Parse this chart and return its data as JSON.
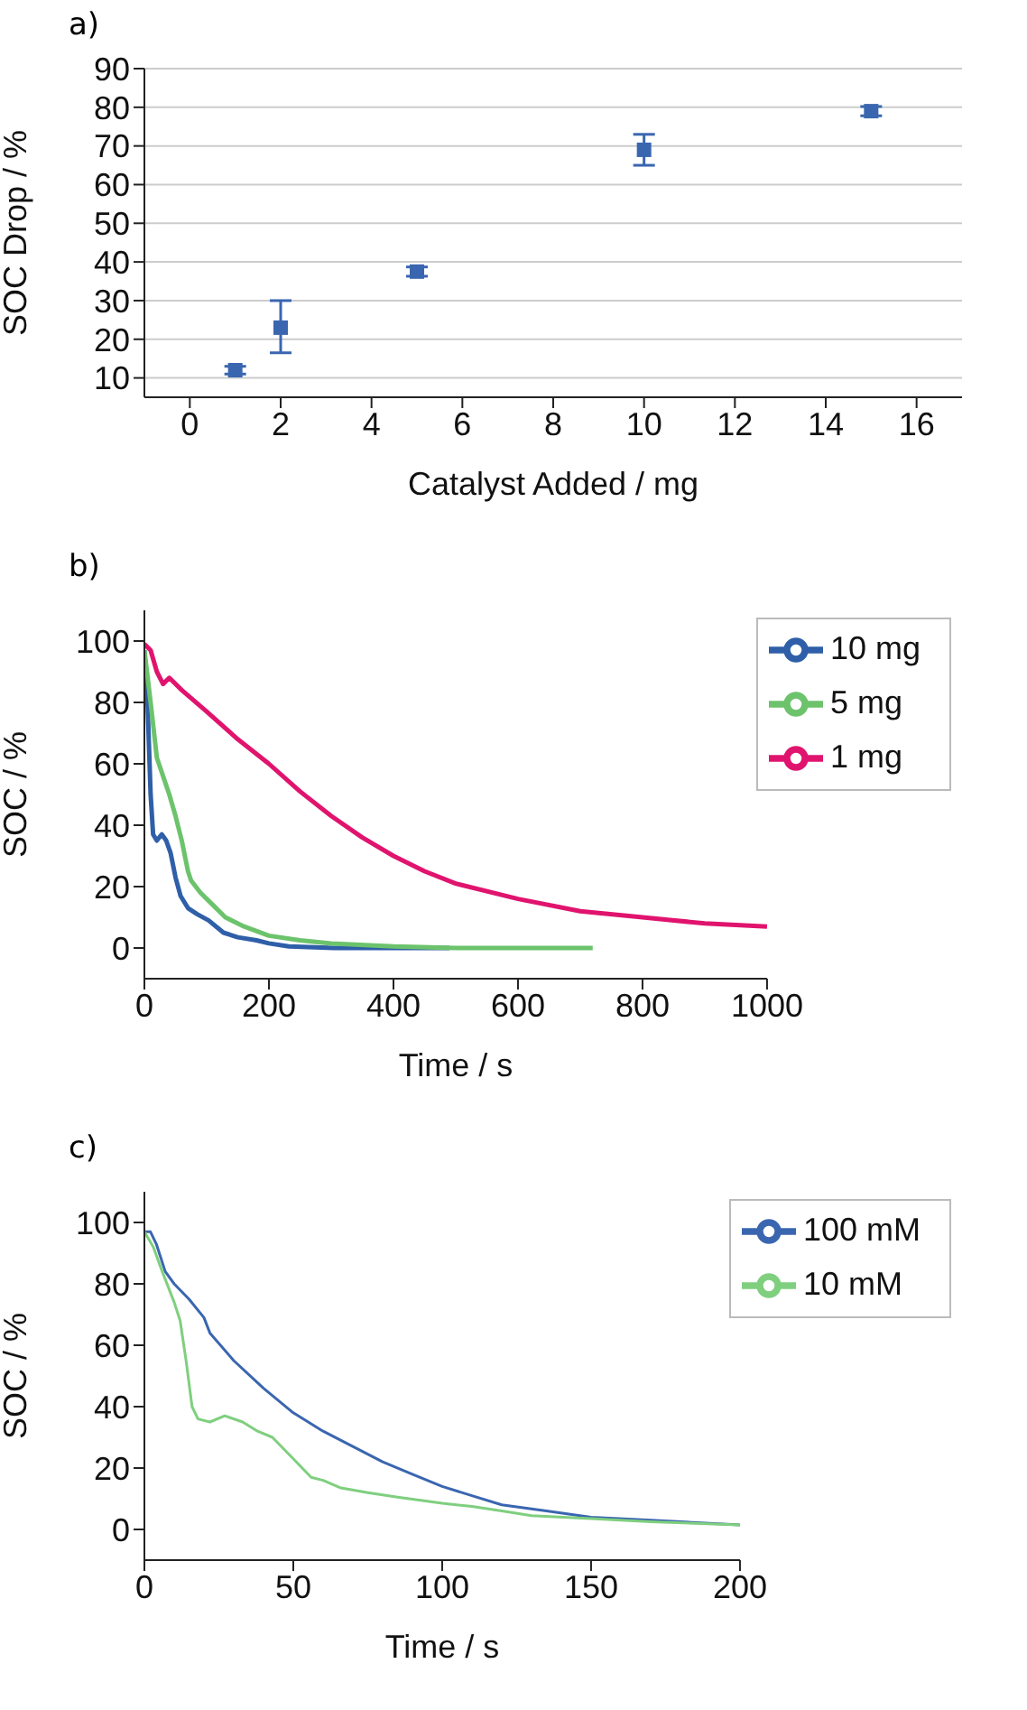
{
  "chart_data": [
    {
      "type": "scatter",
      "annotations": [
        "a)"
      ],
      "xlabel": "Catalyst Added / mg",
      "ylabel": "SOC Drop / %",
      "xlim": [
        -1,
        17
      ],
      "xticks": [
        0,
        2,
        4,
        6,
        8,
        10,
        12,
        14,
        16
      ],
      "ylim": [
        5,
        90
      ],
      "yticks": [
        10,
        20,
        30,
        40,
        50,
        60,
        70,
        80,
        90
      ],
      "grid": "y",
      "marker": "square",
      "legend": false,
      "series": [
        {
          "color": "#3a66b0",
          "x": [
            1,
            2,
            5,
            10,
            15
          ],
          "values": [
            12,
            23,
            37.5,
            69,
            79
          ],
          "errors": [
            1,
            [
              16.5,
              30
            ],
            1.2,
            [
              65,
              73
            ],
            1.2
          ]
        }
      ]
    },
    {
      "type": "line",
      "annotations": [
        "b)"
      ],
      "xlabel": "Time / s",
      "ylabel": "SOC / %",
      "xlim": [
        0,
        1000
      ],
      "xticks": [
        0,
        200,
        400,
        600,
        800,
        1000
      ],
      "ylim": [
        -10,
        110
      ],
      "yticks": [
        0,
        20,
        40,
        60,
        80,
        100
      ],
      "grid": false,
      "legend": "top right",
      "marker": "none",
      "line_style": "solid",
      "series": [
        {
          "name": "10 mg",
          "color": "#2f5fa8",
          "x": [
            0,
            5,
            10,
            14,
            20,
            28,
            35,
            42,
            50,
            58,
            70,
            85,
            103,
            127,
            150,
            180,
            200,
            232,
            305,
            400,
            490
          ],
          "values": [
            97,
            80,
            50,
            37,
            35,
            37,
            35,
            31,
            23,
            17,
            13,
            11,
            9,
            5,
            3.5,
            2.5,
            1.5,
            0.5,
            0,
            0,
            0
          ]
        },
        {
          "name": "5 mg",
          "color": "#6cc36c",
          "x": [
            0,
            10,
            20,
            30,
            40,
            50,
            60,
            70,
            75,
            90,
            110,
            130,
            160,
            200,
            250,
            300,
            400,
            500,
            600,
            720
          ],
          "values": [
            97,
            80,
            62,
            56,
            50,
            43,
            35,
            25,
            22,
            18,
            14,
            10,
            7,
            4,
            2.5,
            1.5,
            0.5,
            0,
            0,
            0
          ]
        },
        {
          "name": "1 mg",
          "color": "#e0146e",
          "x": [
            0,
            10,
            20,
            30,
            40,
            60,
            100,
            150,
            200,
            250,
            300,
            350,
            400,
            450,
            500,
            600,
            700,
            800,
            900,
            1000
          ],
          "values": [
            99,
            97,
            90,
            86,
            88,
            84,
            77,
            68,
            60,
            51,
            43,
            36,
            30,
            25,
            21,
            16,
            12,
            10,
            8,
            7
          ]
        }
      ]
    },
    {
      "type": "line",
      "annotations": [
        "c)"
      ],
      "xlabel": "Time / s",
      "ylabel": "SOC / %",
      "xlim": [
        0,
        200
      ],
      "xticks": [
        0,
        50,
        100,
        150,
        200
      ],
      "ylim": [
        -10,
        110
      ],
      "yticks": [
        0,
        20,
        40,
        60,
        80,
        100
      ],
      "grid": false,
      "legend": "top right",
      "marker": "none",
      "line_style": "solid",
      "series": [
        {
          "name": "100 mM",
          "color": "#3a66b0",
          "x": [
            0,
            2,
            4,
            7,
            10,
            15,
            20,
            22,
            30,
            40,
            50,
            60,
            70,
            80,
            90,
            100,
            110,
            120,
            135,
            150,
            170,
            200
          ],
          "values": [
            97,
            97,
            93,
            84,
            80,
            75,
            69,
            64,
            55,
            46,
            38,
            32,
            27,
            22,
            18,
            14,
            11,
            8,
            6,
            4,
            3,
            1.5
          ]
        },
        {
          "name": "10 mM",
          "color": "#7fcf7f",
          "x": [
            0,
            3,
            6,
            10,
            12,
            14,
            16,
            18,
            22,
            27,
            33,
            38,
            43,
            50,
            56,
            60,
            66,
            75,
            85,
            100,
            110,
            120,
            130,
            150,
            170,
            200
          ],
          "values": [
            97,
            92,
            84,
            74,
            68,
            55,
            40,
            36,
            35,
            37,
            35,
            32,
            30,
            23,
            17,
            16,
            13.5,
            12,
            10.5,
            8.5,
            7.5,
            6,
            4.5,
            3.5,
            2.5,
            1.5
          ]
        }
      ]
    }
  ]
}
